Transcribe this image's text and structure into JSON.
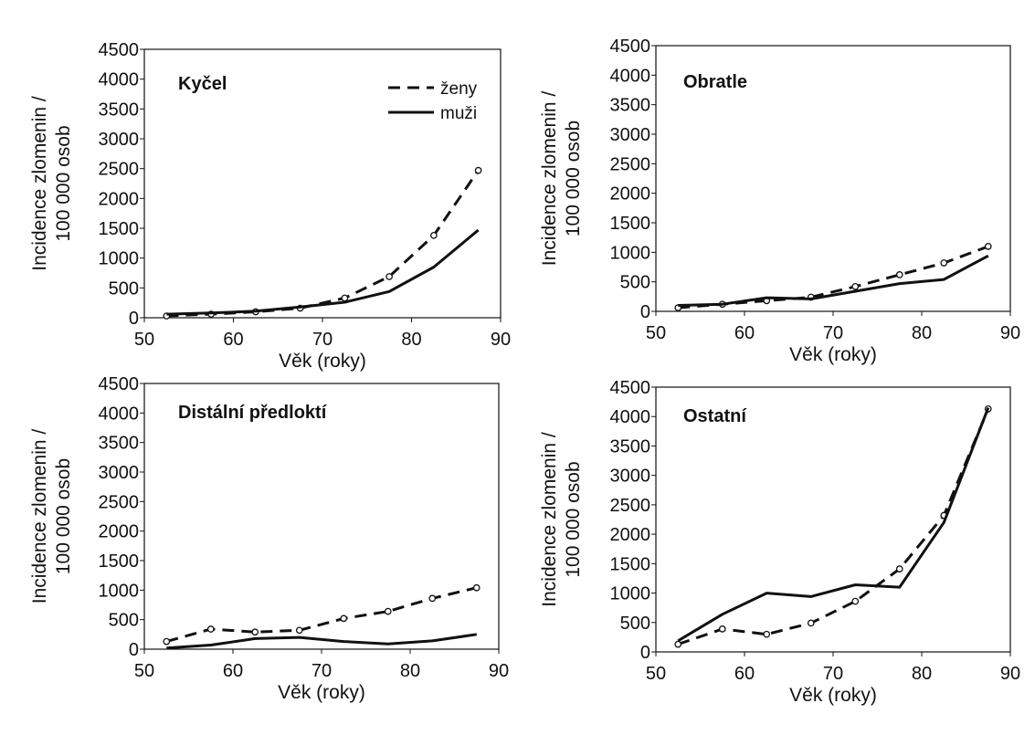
{
  "colors": {
    "line": "#111111",
    "background": "#ffffff"
  },
  "chart_data": [
    {
      "type": "line",
      "title": "Kyčel",
      "xlabel": "Věk (roky)",
      "ylabel_lines": [
        "Incidence zlomenin /",
        "100 000 osob"
      ],
      "xlim": [
        50,
        90
      ],
      "ylim": [
        0,
        4500
      ],
      "xticks": [
        "50",
        "60",
        "70",
        "80",
        "90"
      ],
      "yticks": [
        "0",
        "500",
        "1000",
        "1500",
        "2000",
        "2500",
        "3000",
        "3500",
        "4000",
        "4500"
      ],
      "legend": {
        "position": "top-right",
        "entries": [
          "ženy",
          "muži"
        ]
      },
      "x": [
        52.5,
        57.5,
        62.5,
        67.5,
        72.5,
        77.5,
        82.5,
        87.5
      ],
      "series": [
        {
          "name": "ženy",
          "style": "dashed",
          "markers": true,
          "values": [
            30,
            60,
            100,
            160,
            330,
            690,
            1380,
            2470
          ]
        },
        {
          "name": "muži",
          "style": "solid",
          "markers": false,
          "values": [
            60,
            80,
            110,
            180,
            260,
            440,
            850,
            1470
          ]
        }
      ]
    },
    {
      "type": "line",
      "title": "Obratle",
      "xlabel": "Věk (roky)",
      "ylabel_lines": [
        "Incidence zlomenin /",
        "100 000 osob"
      ],
      "xlim": [
        50,
        90
      ],
      "ylim": [
        0,
        4500
      ],
      "xticks": [
        "50",
        "60",
        "70",
        "80",
        "90"
      ],
      "yticks": [
        "0",
        "500",
        "1000",
        "1500",
        "2000",
        "2500",
        "3000",
        "3500",
        "4000",
        "4500"
      ],
      "x": [
        52.5,
        57.5,
        62.5,
        67.5,
        72.5,
        77.5,
        82.5,
        87.5
      ],
      "series": [
        {
          "name": "ženy",
          "style": "dashed",
          "markers": true,
          "values": [
            60,
            120,
            180,
            240,
            420,
            620,
            820,
            1100
          ]
        },
        {
          "name": "muži",
          "style": "solid",
          "markers": false,
          "values": [
            100,
            120,
            230,
            210,
            340,
            470,
            540,
            940
          ]
        }
      ]
    },
    {
      "type": "line",
      "title": "Distální předloktí",
      "xlabel": "Věk (roky)",
      "ylabel_lines": [
        "Incidence zlomenin /",
        "100 000 osob"
      ],
      "xlim": [
        50,
        90
      ],
      "ylim": [
        0,
        4500
      ],
      "xticks": [
        "50",
        "60",
        "70",
        "80",
        "90"
      ],
      "yticks": [
        "0",
        "500",
        "1000",
        "1500",
        "2000",
        "2500",
        "3000",
        "3500",
        "4000",
        "4500"
      ],
      "x": [
        52.5,
        57.5,
        62.5,
        67.5,
        72.5,
        77.5,
        82.5,
        87.5
      ],
      "series": [
        {
          "name": "ženy",
          "style": "dashed",
          "markers": true,
          "values": [
            130,
            340,
            290,
            320,
            520,
            640,
            860,
            1040
          ]
        },
        {
          "name": "muži",
          "style": "solid",
          "markers": false,
          "values": [
            20,
            70,
            180,
            200,
            130,
            90,
            140,
            250
          ]
        }
      ]
    },
    {
      "type": "line",
      "title": "Ostatní",
      "xlabel": "Věk (roky)",
      "ylabel_lines": [
        "Incidence zlomenin /",
        "100 000 osob"
      ],
      "xlim": [
        50,
        90
      ],
      "ylim": [
        0,
        4500
      ],
      "xticks": [
        "50",
        "60",
        "70",
        "80",
        "90"
      ],
      "yticks": [
        "0",
        "500",
        "1000",
        "1500",
        "2000",
        "2500",
        "3000",
        "3500",
        "4000",
        "4500"
      ],
      "x": [
        52.5,
        57.5,
        62.5,
        67.5,
        72.5,
        77.5,
        82.5,
        87.5
      ],
      "series": [
        {
          "name": "ženy",
          "style": "dashed",
          "markers": true,
          "values": [
            130,
            390,
            300,
            490,
            860,
            1410,
            2320,
            4130
          ]
        },
        {
          "name": "muži",
          "style": "solid",
          "markers": false,
          "values": [
            190,
            640,
            1000,
            940,
            1140,
            1100,
            2200,
            4150
          ]
        }
      ]
    }
  ]
}
